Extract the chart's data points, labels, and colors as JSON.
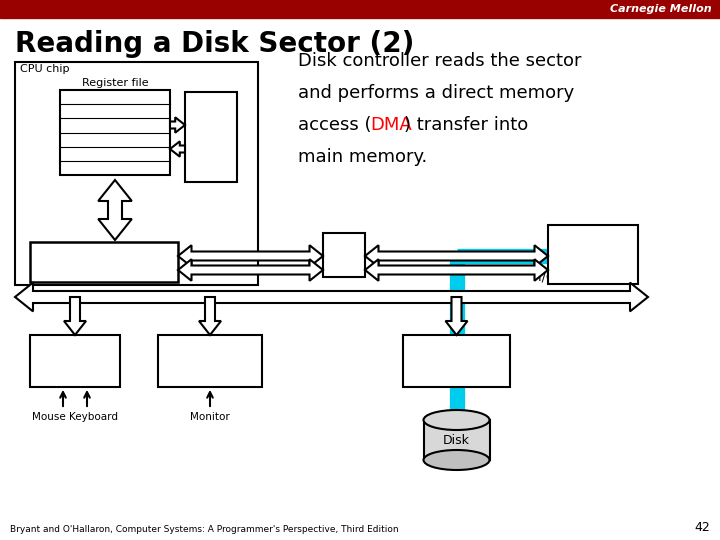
{
  "title": "Reading a Disk Sector (2)",
  "carnegie_mellon_text": "Carnegie Mellon",
  "header_bg": "#990000",
  "header_text_color": "#ffffff",
  "background_color": "#ffffff",
  "title_color": "#000000",
  "title_fontsize": 20,
  "body_fontsize": 11,
  "footnote": "Bryant and O'Hallaron, Computer Systems: A Programmer's Perspective, Third Edition",
  "page_number": "42",
  "dma_color": "#ff0000",
  "cyan_color": "#00ccee",
  "description_lines": [
    "Disk controller reads the sector",
    "and performs a direct memory",
    "access (",
    "DMA",
    ") transfer into",
    "main memory."
  ]
}
